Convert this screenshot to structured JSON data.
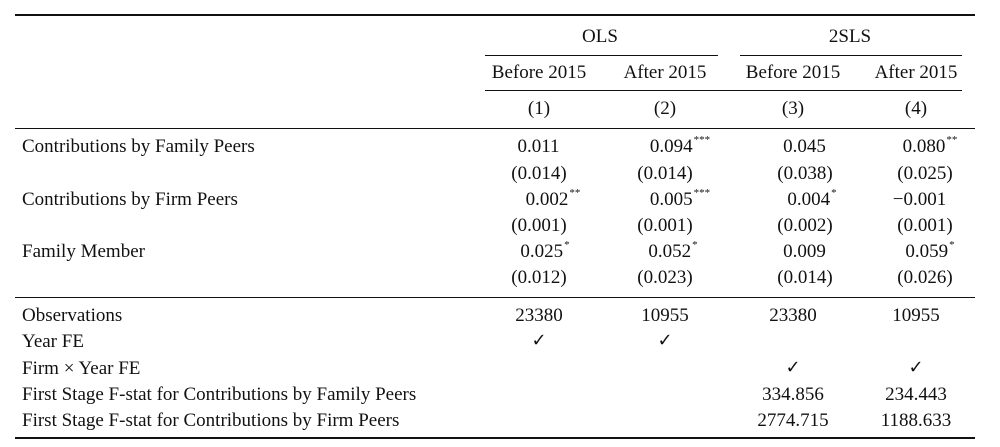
{
  "header": {
    "groups": [
      "OLS",
      "2SLS"
    ],
    "periods": [
      "Before 2015",
      "After 2015",
      "Before 2015",
      "After 2015"
    ],
    "col_numbers": [
      "(1)",
      "(2)",
      "(3)",
      "(4)"
    ]
  },
  "rows": [
    {
      "label": "Contributions by Family Peers",
      "coefs": [
        {
          "v": "0.011",
          "s": ""
        },
        {
          "v": "0.094",
          "s": "***"
        },
        {
          "v": "0.045",
          "s": ""
        },
        {
          "v": "0.080",
          "s": "**"
        }
      ],
      "ses": [
        "(0.014)",
        "(0.014)",
        "(0.038)",
        "(0.025)"
      ]
    },
    {
      "label": "Contributions by Firm Peers",
      "coefs": [
        {
          "v": "0.002",
          "s": "**"
        },
        {
          "v": "0.005",
          "s": "***"
        },
        {
          "v": "0.004",
          "s": "*"
        },
        {
          "v": "−0.001",
          "s": ""
        }
      ],
      "ses": [
        "(0.001)",
        "(0.001)",
        "(0.002)",
        "(0.001)"
      ]
    },
    {
      "label": "Family Member",
      "coefs": [
        {
          "v": "0.025",
          "s": "*"
        },
        {
          "v": "0.052",
          "s": "*"
        },
        {
          "v": "0.009",
          "s": ""
        },
        {
          "v": "0.059",
          "s": "*"
        }
      ],
      "ses": [
        "(0.012)",
        "(0.023)",
        "(0.014)",
        "(0.026)"
      ]
    }
  ],
  "stats": [
    {
      "label": "Observations",
      "values": [
        "23380",
        "10955",
        "23380",
        "10955"
      ]
    },
    {
      "label": "Year FE",
      "values": [
        "✓",
        "✓",
        "",
        ""
      ]
    },
    {
      "label": "Firm × Year FE",
      "values": [
        "",
        "",
        "✓",
        "✓"
      ]
    },
    {
      "label": "First Stage F-stat for Contributions by Family Peers",
      "values": [
        "",
        "",
        "334.856",
        "234.443"
      ]
    },
    {
      "label": "First Stage F-stat for Contributions by Firm Peers",
      "values": [
        "",
        "",
        "2774.715",
        "1188.633"
      ]
    }
  ]
}
